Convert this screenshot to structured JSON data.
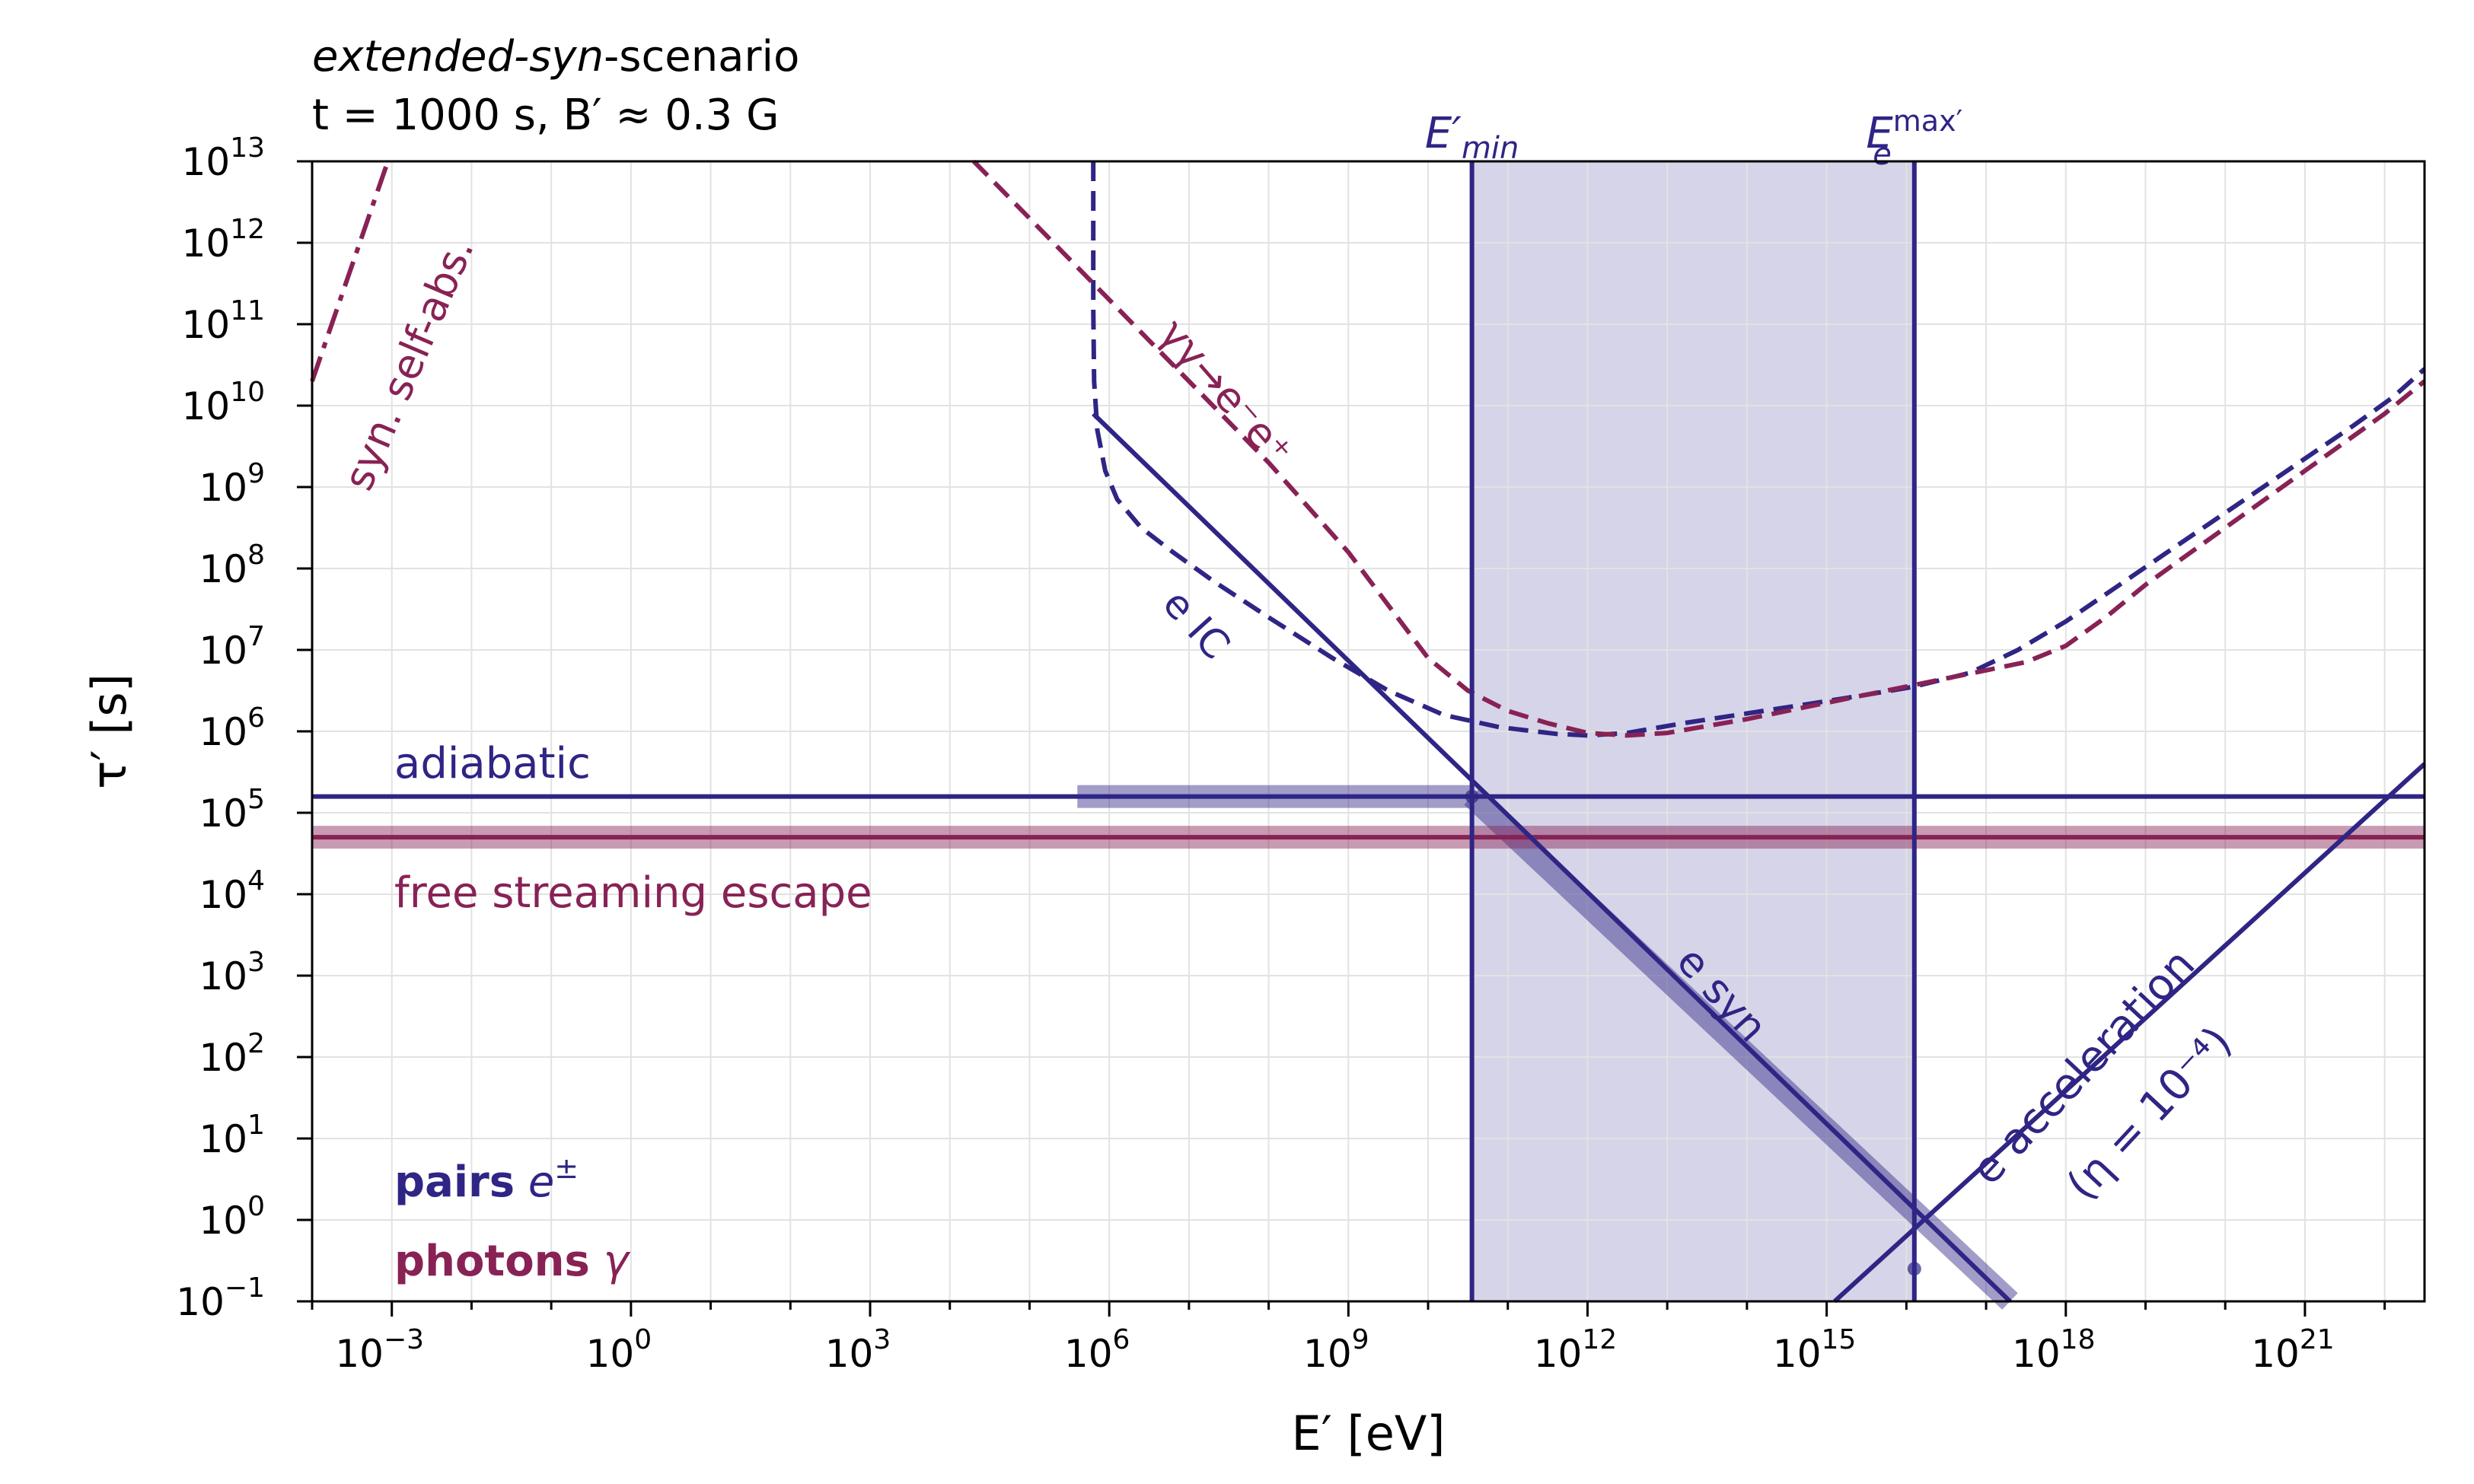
{
  "chart_data": {
    "type": "line",
    "title_lines": [
      {
        "italic": "extended-syn",
        "rest": "-scenario"
      },
      {
        "text": "t = 1000 s, B′ ≈ 0.3 G"
      }
    ],
    "xlabel": "E′ [eV]",
    "ylabel": "τ′ [s]",
    "xscale": "log",
    "yscale": "log",
    "xlim_log10": [
      -4,
      22.5
    ],
    "ylim_log10": [
      -1,
      13
    ],
    "x_ticks": [
      {
        "base": "10",
        "exp": "−3",
        "log": -3
      },
      {
        "base": "10",
        "exp": "0",
        "log": 0
      },
      {
        "base": "10",
        "exp": "3",
        "log": 3
      },
      {
        "base": "10",
        "exp": "6",
        "log": 6
      },
      {
        "base": "10",
        "exp": "9",
        "log": 9
      },
      {
        "base": "10",
        "exp": "12",
        "log": 12
      },
      {
        "base": "10",
        "exp": "15",
        "log": 15
      },
      {
        "base": "10",
        "exp": "18",
        "log": 18
      },
      {
        "base": "10",
        "exp": "21",
        "log": 21
      }
    ],
    "y_ticks": [
      {
        "base": "10",
        "exp": "−1",
        "log": -1
      },
      {
        "base": "10",
        "exp": "0",
        "log": 0
      },
      {
        "base": "10",
        "exp": "1",
        "log": 1
      },
      {
        "base": "10",
        "exp": "2",
        "log": 2
      },
      {
        "base": "10",
        "exp": "3",
        "log": 3
      },
      {
        "base": "10",
        "exp": "4",
        "log": 4
      },
      {
        "base": "10",
        "exp": "5",
        "log": 5
      },
      {
        "base": "10",
        "exp": "6",
        "log": 6
      },
      {
        "base": "10",
        "exp": "7",
        "log": 7
      },
      {
        "base": "10",
        "exp": "8",
        "log": 8
      },
      {
        "base": "10",
        "exp": "9",
        "log": 9
      },
      {
        "base": "10",
        "exp": "10",
        "log": 10
      },
      {
        "base": "10",
        "exp": "11",
        "log": 11
      },
      {
        "base": "10",
        "exp": "12",
        "log": 12
      },
      {
        "base": "10",
        "exp": "13",
        "log": 13
      }
    ],
    "grid": true,
    "colors": {
      "pairs": "#2e2585",
      "photons": "#882255",
      "band_fill": "#b4b0d6",
      "grid": "#e2e2e2"
    },
    "shaded_band": {
      "x_log10": [
        10.55,
        16.1
      ]
    },
    "vertical_lines": [
      {
        "x_log10": 10.55,
        "label": "E′",
        "label_sub": "min"
      },
      {
        "x_log10": 16.1,
        "label": "E",
        "label_sub": "e",
        "label_sup": "max′"
      }
    ],
    "series": [
      {
        "id": "adiabatic",
        "color_key": "pairs",
        "style": "solid",
        "x_log10": [
          -4,
          22.5
        ],
        "y_log10": [
          5.2,
          5.2
        ]
      },
      {
        "id": "free-streaming",
        "color_key": "photons",
        "style": "solid",
        "x_log10": [
          -4,
          22.5
        ],
        "y_log10": [
          4.7,
          4.7
        ]
      },
      {
        "id": "e-syn",
        "color_key": "pairs",
        "style": "solid",
        "x_log10": [
          5.8,
          17.3
        ],
        "y_log10": [
          9.9,
          -1
        ]
      },
      {
        "id": "e-acceleration",
        "color_key": "pairs",
        "style": "solid",
        "x_log10": [
          15.1,
          22.5
        ],
        "y_log10": [
          -1,
          5.6
        ]
      },
      {
        "id": "e-ic",
        "color_key": "pairs",
        "style": "dashed",
        "x_log10": [
          5.8,
          5.8,
          5.81,
          5.85,
          5.95,
          6.1,
          6.4,
          6.8,
          7.3,
          8,
          8.8,
          9.5,
          10.2,
          10.9,
          11.6,
          12.0,
          12.5,
          13.2,
          14,
          14.8,
          15.5,
          16.1,
          16.8,
          17.4,
          18,
          18.6,
          19.2,
          19.8,
          20.4,
          21,
          21.6,
          22.1,
          22.5
        ],
        "y_log10": [
          13,
          11.2,
          10.3,
          9.7,
          9.2,
          8.85,
          8.5,
          8.2,
          7.85,
          7.4,
          6.9,
          6.5,
          6.2,
          6.05,
          5.97,
          5.95,
          5.98,
          6.1,
          6.22,
          6.34,
          6.45,
          6.55,
          6.72,
          7.0,
          7.35,
          7.75,
          8.15,
          8.55,
          8.95,
          9.35,
          9.75,
          10.1,
          10.45
        ]
      },
      {
        "id": "gamma-gamma",
        "color_key": "photons",
        "style": "dashed",
        "x_log10": [
          4.3,
          5,
          6,
          7,
          8,
          9,
          10,
          10.5,
          11,
          11.5,
          12,
          12.5,
          13,
          14,
          15,
          16,
          16.5,
          17,
          17.5,
          18,
          18.5,
          19,
          19.5,
          20,
          20.5,
          21,
          21.5,
          22,
          22.5
        ],
        "y_log10": [
          13,
          12.3,
          11.3,
          10.3,
          9.3,
          8.2,
          6.9,
          6.5,
          6.25,
          6.1,
          5.98,
          5.95,
          5.98,
          6.15,
          6.35,
          6.55,
          6.65,
          6.75,
          6.85,
          7.05,
          7.4,
          7.8,
          8.15,
          8.5,
          8.85,
          9.2,
          9.55,
          9.9,
          10.3
        ]
      },
      {
        "id": "syn-self-abs",
        "color_key": "photons",
        "style": "dashdot",
        "x_log10": [
          -4,
          -3.05
        ],
        "y_log10": [
          10.3,
          13
        ]
      }
    ],
    "thick_bands": [
      {
        "color_key": "pairs",
        "x_log10": [
          5.6,
          10.55
        ],
        "y_log10": [
          5.2,
          5.2
        ]
      },
      {
        "color_key": "pairs",
        "x_log10": [
          10.55,
          17.3
        ],
        "y_log10": [
          5.2,
          -1
        ]
      },
      {
        "color_key": "photons",
        "x_log10": [
          -4,
          22.5
        ],
        "y_log10": [
          4.7,
          4.7
        ]
      }
    ],
    "crossing_markers": [
      {
        "x_log10": 10.55,
        "y_log10": 5.2
      },
      {
        "x_log10": 16.1,
        "y_log10": -0.6
      }
    ],
    "annotations": [
      {
        "id": "adiabatic",
        "text": "adiabatic",
        "color_key": "pairs"
      },
      {
        "id": "free-streaming",
        "text": "free streaming escape",
        "color_key": "photons"
      },
      {
        "id": "e-syn",
        "text": "e syn",
        "color_key": "pairs"
      },
      {
        "id": "e-ic",
        "text": "e IC",
        "color_key": "pairs"
      },
      {
        "id": "gamma-gamma",
        "text": "γγ→e⁻e⁺",
        "color_key": "photons"
      },
      {
        "id": "syn-self-abs",
        "text": "syn. self-abs.",
        "color_key": "photons"
      },
      {
        "id": "e-acceleration",
        "text": "e acceleration",
        "color_key": "pairs"
      },
      {
        "id": "eta",
        "text": "(η = 10⁻⁴)",
        "color_key": "pairs"
      }
    ],
    "legend": {
      "position": "bottom-left",
      "entries": [
        {
          "bold": "pairs",
          "italic": "e",
          "sup": "±",
          "color_key": "pairs"
        },
        {
          "bold": "photons",
          "italic": "γ",
          "color_key": "photons"
        }
      ]
    }
  }
}
